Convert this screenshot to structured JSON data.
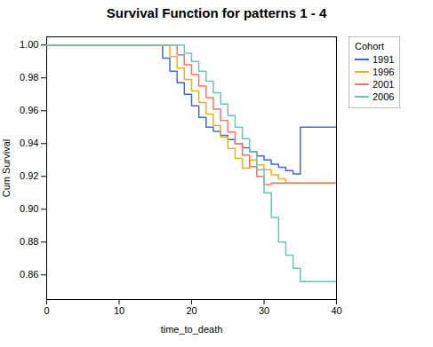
{
  "chart_data": {
    "type": "step",
    "title": "Survival Function for patterns 1 - 4",
    "xlabel": "time_to_death",
    "ylabel": "Cum Survival",
    "xlim": [
      0,
      40
    ],
    "ylim": [
      0.845,
      1.005
    ],
    "xticks": [
      0,
      10,
      20,
      30,
      40
    ],
    "yticks": [
      0.86,
      0.88,
      {
        "value": 0.9,
        "label": "0.90"
      },
      0.92,
      0.94,
      0.96,
      0.98,
      {
        "value": 1.0,
        "label": "1.00"
      }
    ],
    "grid": false,
    "legend": "right",
    "legend_title": "Cohort",
    "series": [
      {
        "name": "1991",
        "x": [
          0,
          15,
          16,
          17,
          18,
          19,
          20,
          21,
          22,
          23,
          24,
          25,
          26,
          27,
          28,
          29,
          30,
          31,
          32,
          33,
          34,
          35,
          40
        ],
        "values": [
          1.0,
          1.0,
          0.992,
          0.984,
          0.977,
          0.97,
          0.963,
          0.956,
          0.95,
          0.9475,
          0.945,
          0.9425,
          0.94,
          0.9375,
          0.935,
          0.9325,
          0.93,
          0.9275,
          0.9255,
          0.9235,
          0.9215,
          0.95,
          0.95
        ]
      },
      {
        "name": "1996",
        "x": [
          0,
          16,
          17,
          18,
          19,
          20,
          21,
          22,
          23,
          24,
          25,
          26,
          27,
          28,
          29,
          30,
          31,
          32,
          33,
          40
        ],
        "values": [
          1.0,
          1.0,
          0.993,
          0.986,
          0.979,
          0.972,
          0.965,
          0.958,
          0.951,
          0.944,
          0.937,
          0.931,
          0.925,
          0.93,
          0.927,
          0.924,
          0.921,
          0.9185,
          0.916,
          0.916
        ]
      },
      {
        "name": "2001",
        "x": [
          0,
          17,
          18,
          19,
          20,
          21,
          22,
          23,
          24,
          25,
          26,
          27,
          28,
          29,
          30,
          31,
          40
        ],
        "values": [
          1.0,
          1.0,
          0.994,
          0.988,
          0.982,
          0.975,
          0.968,
          0.961,
          0.954,
          0.947,
          0.94,
          0.933,
          0.926,
          0.92,
          0.915,
          0.916,
          0.916
        ]
      },
      {
        "name": "2006",
        "x": [
          0,
          18,
          19,
          20,
          21,
          22,
          23,
          24,
          25,
          26,
          27,
          28,
          29,
          30,
          31,
          32,
          33,
          34,
          35,
          40
        ],
        "values": [
          1.0,
          1.0,
          0.995,
          0.99,
          0.984,
          0.978,
          0.971,
          0.964,
          0.957,
          0.95,
          0.943,
          0.935,
          0.924,
          0.91,
          0.895,
          0.88,
          0.872,
          0.864,
          0.856,
          0.856
        ]
      }
    ]
  }
}
